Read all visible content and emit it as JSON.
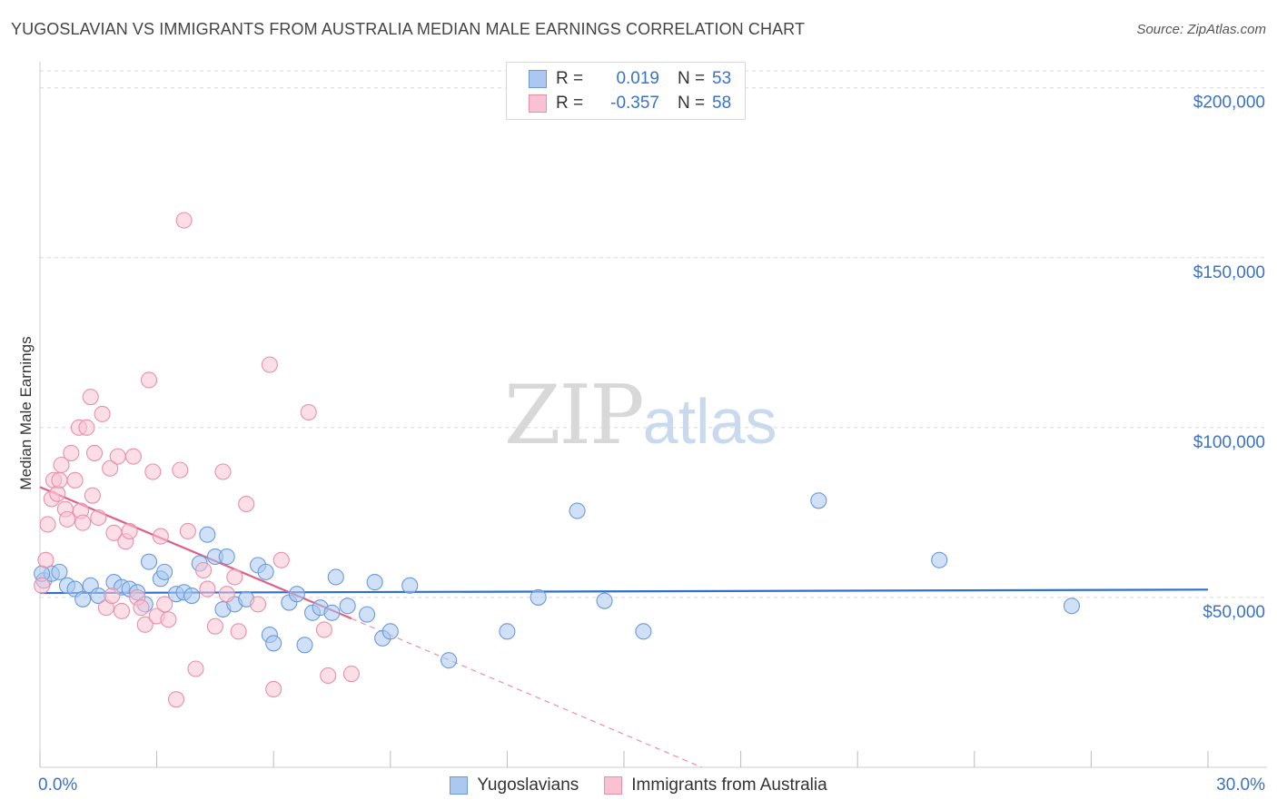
{
  "header": {
    "title": "YUGOSLAVIAN VS IMMIGRANTS FROM AUSTRALIA MEDIAN MALE EARNINGS CORRELATION CHART",
    "source": "Source: ZipAtlas.com"
  },
  "watermark": {
    "zip": "ZIP",
    "atlas": "atlas"
  },
  "legend": {
    "rows": [
      {
        "r_label": "R =",
        "r_value": "0.019",
        "n_label": "N =",
        "n_value": "53",
        "color": "#aac8f0",
        "stroke": "#6a9ad8"
      },
      {
        "r_label": "R =",
        "r_value": "-0.357",
        "n_label": "N =",
        "n_value": "58",
        "color": "#f9c2d2",
        "stroke": "#e890aa"
      }
    ]
  },
  "bottom_legend": {
    "items": [
      {
        "label": "Yugoslavians",
        "color": "#aac8f0",
        "stroke": "#6a9ad8"
      },
      {
        "label": "Immigrants from Australia",
        "color": "#f9c2d2",
        "stroke": "#e890aa"
      }
    ]
  },
  "chart_data": {
    "type": "scatter",
    "title": "YUGOSLAVIAN VS IMMIGRANTS FROM AUSTRALIA MEDIAN MALE EARNINGS CORRELATION CHART",
    "xlabel": "",
    "ylabel": "Median Male Earnings",
    "xlim": [
      0,
      30
    ],
    "ylim": [
      0,
      205000
    ],
    "x_tick_labels": [
      {
        "value": 0,
        "label": "0.0%"
      },
      {
        "value": 30,
        "label": "30.0%"
      }
    ],
    "y_tick_labels": [
      {
        "value": 50000,
        "label": "$50,000"
      },
      {
        "value": 100000,
        "label": "$100,000"
      },
      {
        "value": 150000,
        "label": "$150,000"
      },
      {
        "value": 200000,
        "label": "$200,000"
      }
    ],
    "y_gridlines": [
      50000,
      100000,
      150000,
      200000
    ],
    "series": [
      {
        "name": "Yugoslavians",
        "color": "#aac8f0",
        "stroke": "#6a9ad8",
        "trend": {
          "x0": 0,
          "y0": 51300,
          "x1": 30,
          "y1": 52300,
          "color": "#2f6fd0"
        },
        "points": [
          [
            0.1,
            55000
          ],
          [
            0.3,
            57000
          ],
          [
            0.5,
            57500
          ],
          [
            0.7,
            53500
          ],
          [
            0.9,
            52500
          ],
          [
            1.1,
            49500
          ],
          [
            1.3,
            53500
          ],
          [
            1.5,
            50500
          ],
          [
            1.9,
            54500
          ],
          [
            2.1,
            53000
          ],
          [
            2.3,
            52500
          ],
          [
            2.5,
            51500
          ],
          [
            2.7,
            48000
          ],
          [
            2.8,
            60500
          ],
          [
            3.1,
            55500
          ],
          [
            3.2,
            57500
          ],
          [
            3.5,
            51000
          ],
          [
            3.7,
            51500
          ],
          [
            3.9,
            50500
          ],
          [
            4.1,
            60000
          ],
          [
            4.3,
            68500
          ],
          [
            4.5,
            62000
          ],
          [
            4.7,
            46500
          ],
          [
            4.8,
            62000
          ],
          [
            5.0,
            48000
          ],
          [
            5.3,
            49500
          ],
          [
            5.6,
            59500
          ],
          [
            5.8,
            57500
          ],
          [
            5.9,
            39000
          ],
          [
            6.0,
            36500
          ],
          [
            6.4,
            48500
          ],
          [
            6.6,
            51000
          ],
          [
            6.8,
            36000
          ],
          [
            7.0,
            45500
          ],
          [
            7.2,
            47000
          ],
          [
            7.5,
            45500
          ],
          [
            7.6,
            56000
          ],
          [
            7.9,
            47500
          ],
          [
            8.4,
            45000
          ],
          [
            8.6,
            54500
          ],
          [
            8.8,
            38000
          ],
          [
            9.0,
            40000
          ],
          [
            9.5,
            53500
          ],
          [
            10.5,
            31500
          ],
          [
            12.0,
            40000
          ],
          [
            12.8,
            50000
          ],
          [
            13.8,
            75500
          ],
          [
            14.5,
            49000
          ],
          [
            15.5,
            40000
          ],
          [
            20.0,
            78500
          ],
          [
            23.1,
            61000
          ],
          [
            26.5,
            47500
          ],
          [
            0.05,
            57000
          ]
        ]
      },
      {
        "name": "Immigrants from Australia",
        "color": "#f9c2d2",
        "stroke": "#e890aa",
        "trend": {
          "x0": 0,
          "y0": 82500,
          "x1": 8.0,
          "y1": 43800,
          "color": "#e0608a"
        },
        "trend_ext": {
          "x0": 8.0,
          "y0": 43800,
          "x1": 17.0,
          "y1": 0
        },
        "points": [
          [
            0.05,
            53500
          ],
          [
            0.15,
            61000
          ],
          [
            0.2,
            71500
          ],
          [
            0.3,
            79000
          ],
          [
            0.35,
            84500
          ],
          [
            0.45,
            80500
          ],
          [
            0.5,
            84500
          ],
          [
            0.55,
            89000
          ],
          [
            0.65,
            76000
          ],
          [
            0.7,
            73000
          ],
          [
            0.8,
            92500
          ],
          [
            0.9,
            84500
          ],
          [
            1.0,
            100000
          ],
          [
            1.05,
            75500
          ],
          [
            1.1,
            72000
          ],
          [
            1.2,
            100000
          ],
          [
            1.3,
            109000
          ],
          [
            1.35,
            80000
          ],
          [
            1.4,
            92500
          ],
          [
            1.5,
            73500
          ],
          [
            1.6,
            104000
          ],
          [
            1.7,
            47000
          ],
          [
            1.8,
            88000
          ],
          [
            1.85,
            50500
          ],
          [
            1.9,
            69000
          ],
          [
            2.0,
            91500
          ],
          [
            2.1,
            46000
          ],
          [
            2.2,
            66500
          ],
          [
            2.3,
            69500
          ],
          [
            2.4,
            91500
          ],
          [
            2.5,
            50000
          ],
          [
            2.6,
            47000
          ],
          [
            2.7,
            42000
          ],
          [
            2.8,
            114000
          ],
          [
            2.9,
            87000
          ],
          [
            3.0,
            44500
          ],
          [
            3.1,
            68000
          ],
          [
            3.2,
            48000
          ],
          [
            3.3,
            43500
          ],
          [
            3.5,
            20000
          ],
          [
            3.6,
            87500
          ],
          [
            3.7,
            161000
          ],
          [
            3.8,
            69500
          ],
          [
            4.0,
            29000
          ],
          [
            4.2,
            58000
          ],
          [
            4.3,
            52500
          ],
          [
            4.5,
            41500
          ],
          [
            4.7,
            87000
          ],
          [
            4.8,
            51000
          ],
          [
            5.0,
            56000
          ],
          [
            5.1,
            40000
          ],
          [
            5.3,
            77500
          ],
          [
            5.6,
            48000
          ],
          [
            5.9,
            118500
          ],
          [
            6.0,
            23000
          ],
          [
            6.2,
            61000
          ],
          [
            6.9,
            104500
          ],
          [
            7.4,
            27000
          ]
        ]
      }
    ],
    "extra_points_series2": [
      [
        7.3,
        40500
      ],
      [
        8.0,
        27500
      ]
    ]
  }
}
